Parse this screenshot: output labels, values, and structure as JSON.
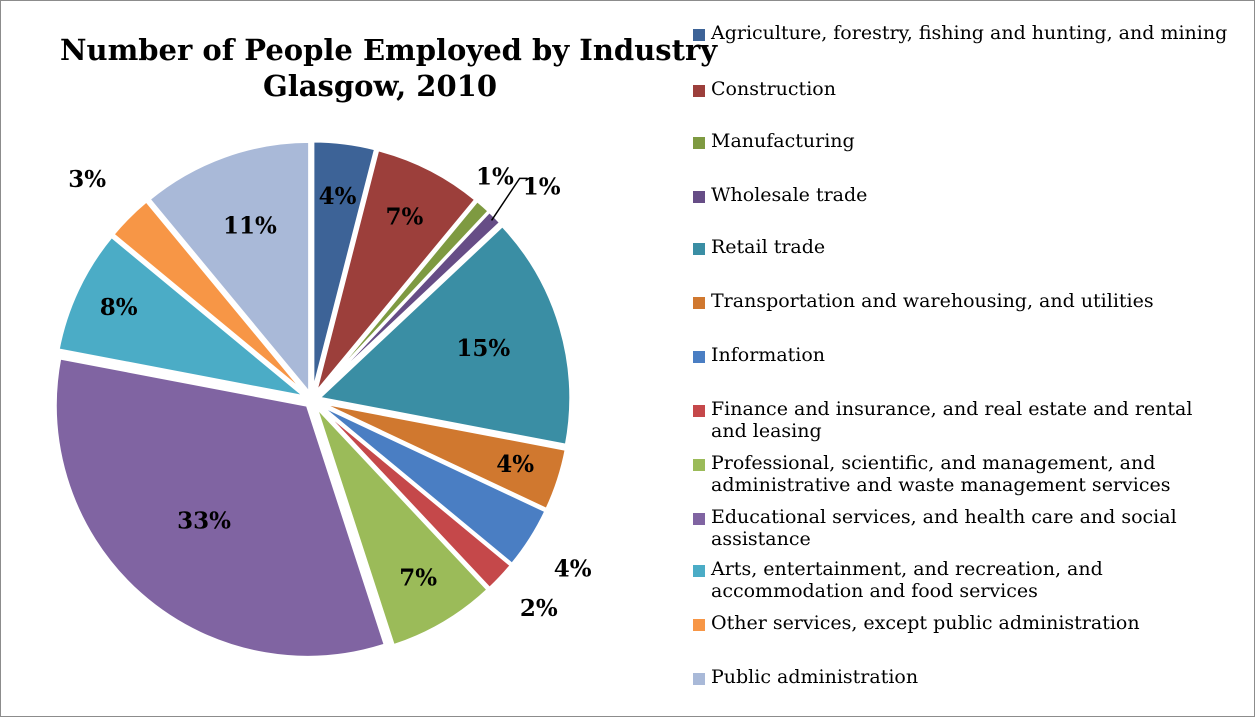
{
  "chart_data": {
    "type": "pie",
    "title": "Number of People Employed by Industry",
    "subtitle": "Glasgow, 2010",
    "legend_position": "right",
    "slices": [
      {
        "label": "Agriculture, forestry, fishing and hunting, and mining",
        "value": 4,
        "data_label": "4%",
        "color": "#3d6397"
      },
      {
        "label": "Construction",
        "value": 7,
        "data_label": "7%",
        "color": "#9c3f3b"
      },
      {
        "label": "Manufacturing",
        "value": 1,
        "data_label": "1%",
        "color": "#7e9a41"
      },
      {
        "label": "Wholesale trade",
        "value": 1,
        "data_label": "1%",
        "color": "#664d86"
      },
      {
        "label": "Retail trade",
        "value": 15,
        "data_label": "15%",
        "color": "#3a8ea4"
      },
      {
        "label": "Transportation and warehousing, and utilities",
        "value": 4,
        "data_label": "4%",
        "color": "#d0782f"
      },
      {
        "label": "Information",
        "value": 4,
        "data_label": "4%",
        "color": "#4a7ec3"
      },
      {
        "label": "Finance and insurance, and real estate and rental and leasing",
        "value": 2,
        "data_label": "2%",
        "color": "#c5484a"
      },
      {
        "label": "Professional, scientific, and management, and administrative and waste management services",
        "value": 7,
        "data_label": "7%",
        "color": "#9bbb59"
      },
      {
        "label": "Educational services, and health care and social assistance",
        "value": 33,
        "data_label": "33%",
        "color": "#8064a2"
      },
      {
        "label": "Arts, entertainment, and recreation, and accommodation and food services",
        "value": 8,
        "data_label": "8%",
        "color": "#4bacc6"
      },
      {
        "label": "Other services, except public administration",
        "value": 3,
        "data_label": "3%",
        "color": "#f79646"
      },
      {
        "label": "Public administration",
        "value": 11,
        "data_label": "11%",
        "color": "#a9b9d8"
      }
    ]
  }
}
